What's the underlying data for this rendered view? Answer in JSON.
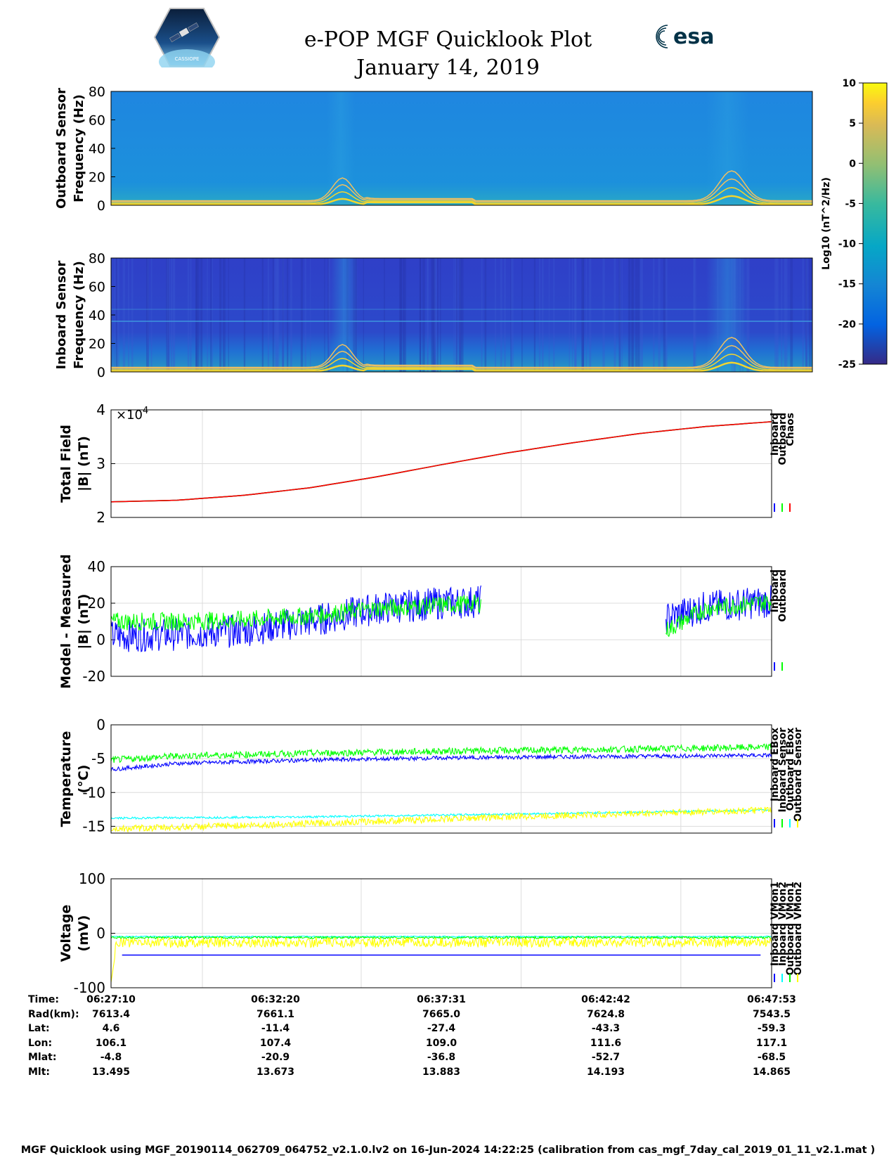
{
  "header": {
    "title": "e-POP MGF Quicklook Plot",
    "date": "January 14, 2019",
    "cassiope_logo_text": "CASSIOPE",
    "esa_logo_text": "esa"
  },
  "colorbar": {
    "label": "Log10 (nT^2/Hz)",
    "ticks": [
      "10",
      "5",
      "0",
      "-5",
      "-10",
      "-15",
      "-20",
      "-25"
    ],
    "range": [
      -25,
      10
    ]
  },
  "chart_data": [
    {
      "type": "heatmap",
      "id": "outboard-spectrogram",
      "ylabel": [
        "Outboard Sensor",
        "Frequency (Hz)"
      ],
      "yticks": [
        "80",
        "60",
        "40",
        "20",
        "0"
      ],
      "ylim": [
        0,
        80
      ],
      "background_level": -14,
      "harmonic_peak_hz": [
        10,
        15
      ]
    },
    {
      "type": "heatmap",
      "id": "inboard-spectrogram",
      "ylabel": [
        "Inboard Sensor",
        "Frequency (Hz)"
      ],
      "yticks": [
        "80",
        "60",
        "40",
        "20",
        "0"
      ],
      "ylim": [
        0,
        80
      ],
      "background_level": -18,
      "harmonic_peak_hz": [
        10,
        15
      ]
    },
    {
      "type": "line",
      "id": "total-field",
      "ylabel": [
        "Total Field",
        "|B| (nT)"
      ],
      "yticks": [
        "4",
        "3",
        "2"
      ],
      "ylim": [
        2,
        4
      ],
      "exponent_label": "×10",
      "exponent_power": "4",
      "legend": [
        "Inboard",
        "Outboard",
        "Chaos"
      ],
      "series": [
        {
          "name": "Inboard",
          "color": "#0000ff",
          "x": [
            0,
            0.1,
            0.2,
            0.3,
            0.4,
            0.5,
            0.6,
            0.7,
            0.8,
            0.9,
            1.0
          ],
          "values": [
            2.29,
            2.32,
            2.41,
            2.55,
            2.75,
            2.98,
            3.2,
            3.39,
            3.56,
            3.69,
            3.78
          ]
        },
        {
          "name": "Outboard",
          "color": "#00ff00",
          "x": [
            0,
            0.1,
            0.2,
            0.3,
            0.4,
            0.5,
            0.6,
            0.7,
            0.8,
            0.9,
            1.0
          ],
          "values": [
            2.29,
            2.32,
            2.41,
            2.55,
            2.75,
            2.98,
            3.2,
            3.39,
            3.56,
            3.69,
            3.78
          ]
        },
        {
          "name": "Chaos",
          "color": "#ff0000",
          "x": [
            0,
            0.1,
            0.2,
            0.3,
            0.4,
            0.5,
            0.6,
            0.7,
            0.8,
            0.9,
            1.0
          ],
          "values": [
            2.29,
            2.32,
            2.41,
            2.55,
            2.75,
            2.98,
            3.2,
            3.39,
            3.56,
            3.69,
            3.78
          ]
        }
      ]
    },
    {
      "type": "line",
      "id": "model-minus-measured",
      "ylabel": [
        "Model - Measured",
        "|B| (nT)"
      ],
      "yticks": [
        "40",
        "20",
        "0",
        "-20"
      ],
      "ylim": [
        -20,
        40
      ],
      "legend": [
        "Inboard",
        "Outboard"
      ],
      "gap": [
        0.56,
        0.84
      ],
      "series": [
        {
          "name": "Inboard",
          "color": "#0000ff",
          "x": [
            0,
            0.1,
            0.2,
            0.3,
            0.4,
            0.5,
            0.56,
            0.84,
            0.9,
            1.0
          ],
          "values": [
            2,
            3,
            5,
            10,
            17,
            20,
            21,
            12,
            18,
            21
          ],
          "noise": 9
        },
        {
          "name": "Outboard",
          "color": "#00ff00",
          "x": [
            0,
            0.1,
            0.2,
            0.3,
            0.4,
            0.5,
            0.56,
            0.84,
            0.9,
            1.0
          ],
          "values": [
            10,
            10,
            11,
            13,
            17,
            19,
            20,
            5,
            17,
            21
          ],
          "noise": 5
        }
      ]
    },
    {
      "type": "line",
      "id": "temperature",
      "ylabel": [
        "Temperature",
        "(°C)"
      ],
      "yticks": [
        "0",
        "-5",
        "-10",
        "-15"
      ],
      "ylim": [
        -16,
        0
      ],
      "legend": [
        "Inboard EBox",
        "Inboard Sensor",
        "Outboard EBox",
        "Outboard Sensor"
      ],
      "series": [
        {
          "name": "Inboard EBox",
          "color": "#0000ff",
          "x": [
            0,
            0.1,
            0.3,
            0.5,
            0.7,
            1.0
          ],
          "values": [
            -6.6,
            -5.7,
            -5.2,
            -4.9,
            -4.7,
            -4.5
          ],
          "noise": 0.3
        },
        {
          "name": "Inboard Sensor",
          "color": "#00ff00",
          "x": [
            0,
            0.1,
            0.3,
            0.5,
            0.7,
            1.0
          ],
          "values": [
            -5.2,
            -4.6,
            -4.2,
            -3.9,
            -3.7,
            -3.3
          ],
          "noise": 0.5
        },
        {
          "name": "Outboard EBox",
          "color": "#00ffff",
          "x": [
            0,
            0.3,
            0.6,
            1.0
          ],
          "values": [
            -13.8,
            -13.6,
            -13.2,
            -12.6
          ],
          "noise": 0.15
        },
        {
          "name": "Outboard Sensor",
          "color": "#ffff00",
          "x": [
            0,
            0.3,
            0.6,
            1.0
          ],
          "values": [
            -15.4,
            -14.6,
            -13.6,
            -12.6
          ],
          "noise": 0.5
        }
      ]
    },
    {
      "type": "line",
      "id": "voltage",
      "ylabel": [
        "Voltage",
        "(mV)"
      ],
      "yticks": [
        "100",
        "0",
        "-100"
      ],
      "ylim": [
        -100,
        100
      ],
      "legend": [
        "Inboard VMon1",
        "Inboard VMon2",
        "Outboard VMon1",
        "Outboard VMon2"
      ],
      "series": [
        {
          "name": "Inboard VMon1",
          "color": "#0000ff",
          "x": [
            0,
            0.01,
            1.0
          ],
          "values": [
            -40,
            -40,
            -40
          ],
          "noise": 0
        },
        {
          "name": "Inboard VMon2",
          "color": "#00ffff",
          "x": [
            0,
            1.0
          ],
          "values": [
            -6,
            -6
          ],
          "noise": 1
        },
        {
          "name": "Outboard VMon1",
          "color": "#00ff00",
          "x": [
            0,
            1.0
          ],
          "values": [
            -8,
            -8
          ],
          "noise": 2
        },
        {
          "name": "Outboard VMon2",
          "color": "#ffff00",
          "x": [
            0,
            1.0
          ],
          "values": [
            -17,
            -17
          ],
          "noise": 9
        }
      ]
    }
  ],
  "ephemeris": {
    "row_labels": [
      "Time:",
      "Rad(km):",
      "Lat:",
      "Lon:",
      "Mlat:",
      "Mlt:"
    ],
    "columns": [
      {
        "time": "06:27:10",
        "rad": "7613.4",
        "lat": "4.6",
        "lon": "106.1",
        "mlat": "-4.8",
        "mlt": "13.495"
      },
      {
        "time": "06:32:20",
        "rad": "7661.1",
        "lat": "-11.4",
        "lon": "107.4",
        "mlat": "-20.9",
        "mlt": "13.673"
      },
      {
        "time": "06:37:31",
        "rad": "7665.0",
        "lat": "-27.4",
        "lon": "109.0",
        "mlat": "-36.8",
        "mlt": "13.883"
      },
      {
        "time": "06:42:42",
        "rad": "7624.8",
        "lat": "-43.3",
        "lon": "111.6",
        "mlat": "-52.7",
        "mlt": "14.193"
      },
      {
        "time": "06:47:53",
        "rad": "7543.5",
        "lat": "-59.3",
        "lon": "117.1",
        "mlat": "-68.5",
        "mlt": "14.865"
      }
    ]
  },
  "footer": "MGF Quicklook using MGF_20190114_062709_064752_v2.1.0.lv2 on 16-Jun-2024 14:22:25 (calibration from cas_mgf_7day_cal_2019_01_11_v2.1.mat )"
}
